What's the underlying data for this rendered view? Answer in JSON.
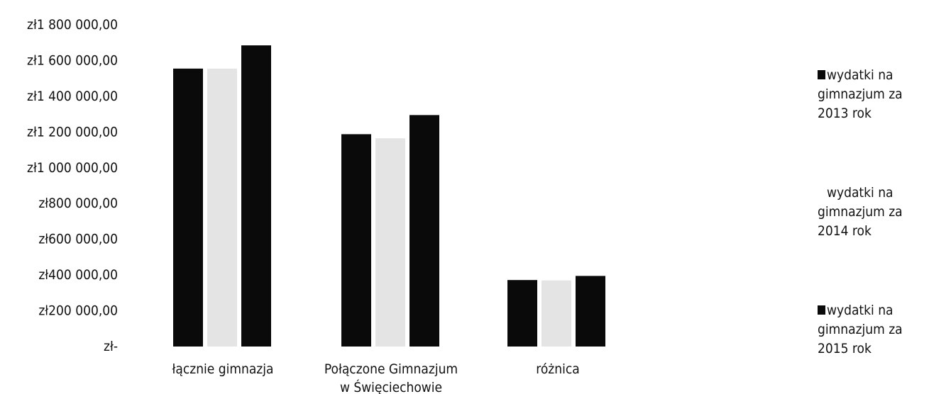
{
  "chart_data": {
    "type": "bar",
    "categories": [
      "łącznie gimnazja",
      "Połączone Gimnazjum w Święciechowie",
      "różnica"
    ],
    "series": [
      {
        "name": "wydatki na gimnazjum za 2013 rok",
        "values": [
          1555000,
          1188000,
          372000
        ],
        "color": "#0a0a0a"
      },
      {
        "name": "wydatki na gimnazjum za 2014 rok",
        "values": [
          1555000,
          1165000,
          370000
        ],
        "color": "#e4e4e4"
      },
      {
        "name": "wydatki na gimnazjum za 2015 rok",
        "values": [
          1685000,
          1295000,
          395000
        ],
        "color": "#0a0a0a"
      }
    ],
    "yticks": [
      "zł1 800 000,00",
      "zł1 600 000,00",
      "zł1 400 000,00",
      "zł1 200 000,00",
      "zł1 000 000,00",
      "zł800 000,00",
      "zł600 000,00",
      "zł400 000,00",
      "zł200 000,00",
      "zł-"
    ],
    "ylim": [
      0,
      1800000
    ],
    "title": "",
    "xlabel": "",
    "ylabel": "",
    "grid": false,
    "legend_position": "right"
  }
}
